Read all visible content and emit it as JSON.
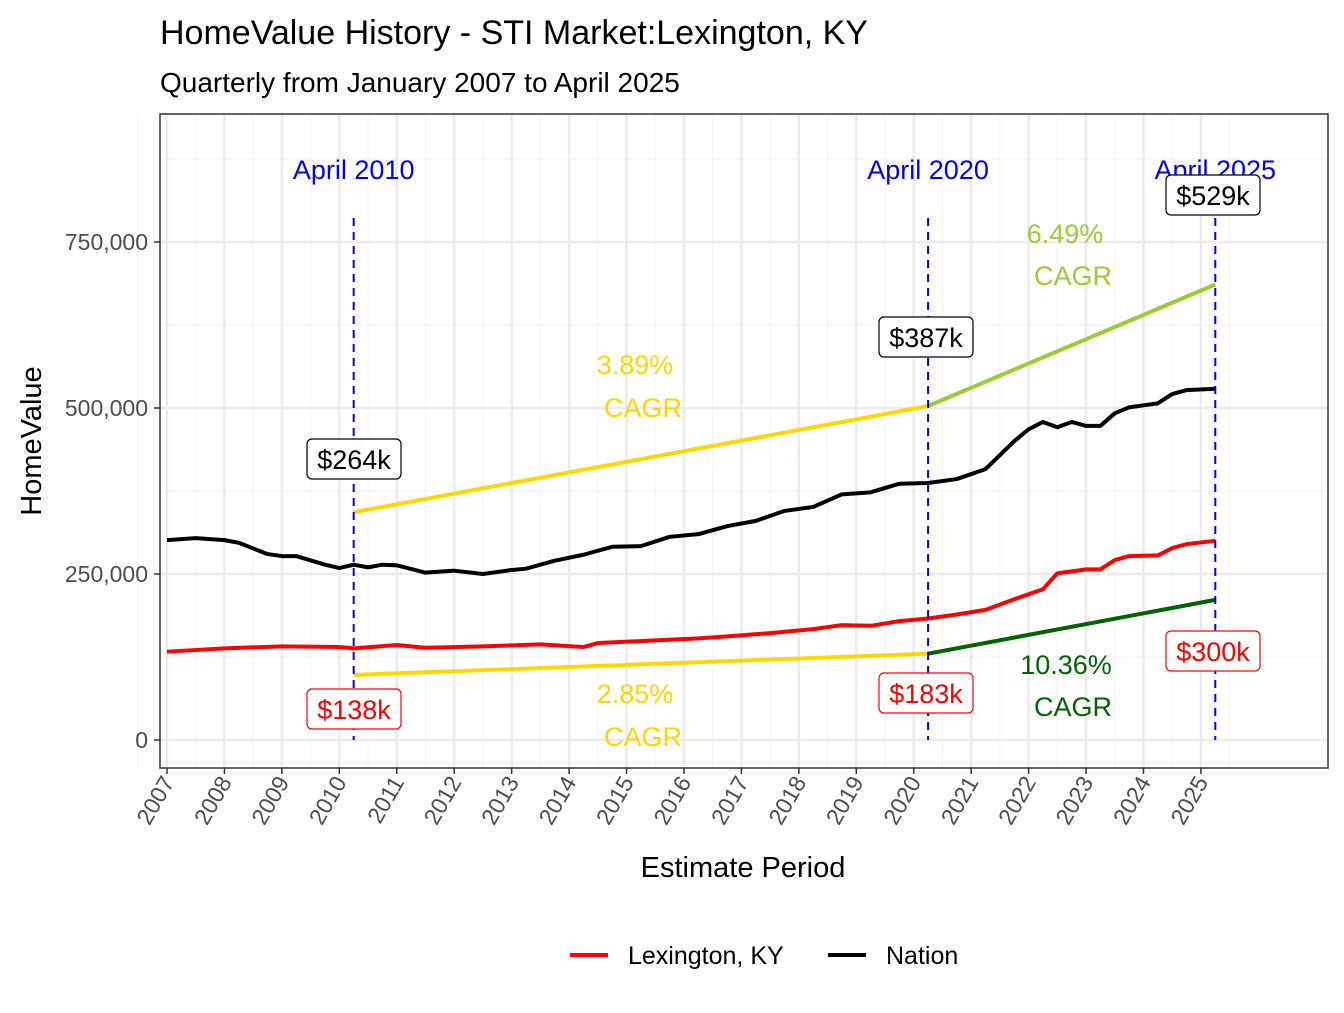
{
  "chart_data": {
    "type": "line",
    "title": "HomeValue History - STI Market:Lexington, KY",
    "subtitle": "Quarterly from January 2007 to April 2025",
    "xlabel": "Estimate Period",
    "ylabel": "HomeValue",
    "xlim": [
      2006.9,
      2027.3
    ],
    "ylim": [
      -42000,
      943000
    ],
    "x_ticks": [
      "2007",
      "2008",
      "2009",
      "2010",
      "2011",
      "2012",
      "2013",
      "2014",
      "2015",
      "2016",
      "2017",
      "2018",
      "2019",
      "2020",
      "2021",
      "2022",
      "2023",
      "2024",
      "2025"
    ],
    "y_ticks": [
      {
        "value": 0,
        "label": "0"
      },
      {
        "value": 250000,
        "label": "250,000"
      },
      {
        "value": 500000,
        "label": "500,000"
      },
      {
        "value": 750000,
        "label": "750,000"
      }
    ],
    "grid": true,
    "legend_position": "bottom",
    "series": [
      {
        "name": "Lexington, KY",
        "color": "#ff0000",
        "x": [
          2007.0,
          2008.0,
          2009.0,
          2010.0,
          2010.25,
          2011.0,
          2011.5,
          2012.5,
          2013.5,
          2014.25,
          2014.5,
          2015.5,
          2016.25,
          2016.75,
          2017.5,
          2018.25,
          2018.75,
          2019.25,
          2019.75,
          2020.25,
          2020.75,
          2021.25,
          2021.75,
          2022.25,
          2022.5,
          2023.0,
          2023.25,
          2023.5,
          2023.75,
          2024.25,
          2024.5,
          2024.75,
          2025.25
        ],
        "values": [
          133000,
          138000,
          141000,
          140000,
          138000,
          143000,
          139000,
          141000,
          144000,
          140000,
          146000,
          150000,
          153000,
          156000,
          161000,
          167000,
          173000,
          172000,
          179000,
          183000,
          189000,
          196000,
          212000,
          227000,
          251000,
          257000,
          257000,
          271000,
          277000,
          278000,
          289000,
          295000,
          300000
        ]
      },
      {
        "name": "Nation",
        "color": "#000000",
        "x": [
          2007.0,
          2007.5,
          2008.0,
          2008.25,
          2008.75,
          2009.0,
          2009.25,
          2009.75,
          2010.0,
          2010.25,
          2010.5,
          2010.75,
          2011.0,
          2011.5,
          2012.0,
          2012.5,
          2013.0,
          2013.25,
          2013.75,
          2014.25,
          2014.75,
          2015.25,
          2015.75,
          2016.25,
          2016.75,
          2017.25,
          2017.75,
          2018.25,
          2018.75,
          2019.25,
          2019.75,
          2020.25,
          2020.75,
          2021.25,
          2021.75,
          2022.0,
          2022.25,
          2022.5,
          2022.75,
          2023.0,
          2023.25,
          2023.5,
          2023.75,
          2024.25,
          2024.5,
          2024.75,
          2025.25
        ],
        "values": [
          301000,
          304000,
          301000,
          297000,
          280000,
          277000,
          277000,
          264000,
          259000,
          264000,
          260000,
          264000,
          263000,
          252000,
          255000,
          250000,
          256000,
          258000,
          270000,
          279000,
          291000,
          292000,
          306000,
          310000,
          322000,
          330000,
          345000,
          351000,
          370000,
          373000,
          386000,
          387000,
          393000,
          408000,
          450000,
          468000,
          479000,
          471000,
          479000,
          473000,
          473000,
          492000,
          501000,
          507000,
          521000,
          527000,
          529000
        ]
      }
    ],
    "cagr_lines": [
      {
        "label": "3.89%",
        "sub": "CAGR",
        "color": "#ffd700",
        "x": [
          2010.25,
          2020.25
        ],
        "values": [
          343000,
          503000
        ]
      },
      {
        "label": "6.49%",
        "sub": "CAGR",
        "color": "#9acd32",
        "x": [
          2020.25,
          2025.25
        ],
        "values": [
          503000,
          686000
        ]
      },
      {
        "label": "2.85%",
        "sub": "CAGR",
        "color": "#ffd700",
        "x": [
          2010.25,
          2020.25
        ],
        "values": [
          98000,
          130000
        ]
      },
      {
        "label": "10.36%",
        "sub": "CAGR",
        "color": "#006400",
        "x": [
          2020.25,
          2025.25
        ],
        "values": [
          130000,
          211000
        ]
      }
    ],
    "vlines": [
      {
        "x": 2010.25,
        "label": "April 2010"
      },
      {
        "x": 2020.25,
        "label": "April 2020"
      },
      {
        "x": 2025.25,
        "label": "April 2025"
      }
    ],
    "value_labels": [
      {
        "text": "$264k",
        "series": "Nation"
      },
      {
        "text": "$138k",
        "series": "Lexington, KY"
      },
      {
        "text": "$387k",
        "series": "Nation"
      },
      {
        "text": "$183k",
        "series": "Lexington, KY"
      },
      {
        "text": "$529k",
        "series": "Nation"
      },
      {
        "text": "$300k",
        "series": "Lexington, KY"
      }
    ],
    "vline_color": "#0000ff"
  }
}
